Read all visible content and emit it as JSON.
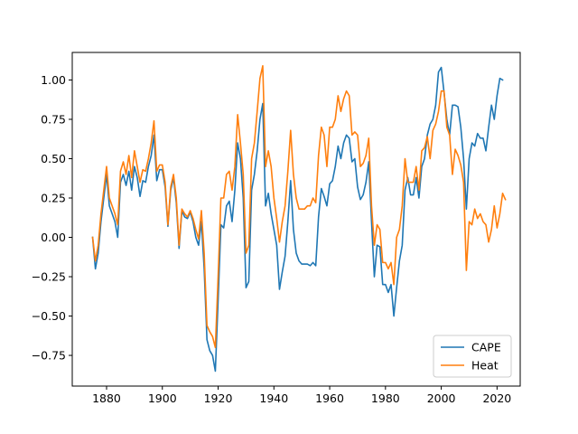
{
  "chart_data": {
    "type": "line",
    "title": "",
    "xlabel": "",
    "ylabel": "",
    "xlim": [
      1867.7,
      2028.3
    ],
    "ylim": [
      -0.945,
      1.175
    ],
    "xticks": [
      1880,
      1900,
      1920,
      1940,
      1960,
      1980,
      2000,
      2020
    ],
    "yticks": [
      -0.75,
      -0.5,
      -0.25,
      0.0,
      0.25,
      0.5,
      0.75,
      1.0
    ],
    "ytick_labels": [
      "−0.75",
      "−0.50",
      "−0.25",
      "0.00",
      "0.25",
      "0.50",
      "0.75",
      "1.00"
    ],
    "grid": false,
    "legend_position": "lower-right",
    "series": [
      {
        "name": "CAPE",
        "color": "#1f77b4",
        "points": [
          [
            1875,
            0.0
          ],
          [
            1876,
            -0.2
          ],
          [
            1877,
            -0.1
          ],
          [
            1878,
            0.1
          ],
          [
            1879,
            0.25
          ],
          [
            1880,
            0.4
          ],
          [
            1881,
            0.2
          ],
          [
            1882,
            0.15
          ],
          [
            1883,
            0.1
          ],
          [
            1884,
            0.0
          ],
          [
            1885,
            0.35
          ],
          [
            1886,
            0.4
          ],
          [
            1887,
            0.33
          ],
          [
            1888,
            0.42
          ],
          [
            1889,
            0.3
          ],
          [
            1890,
            0.45
          ],
          [
            1891,
            0.38
          ],
          [
            1892,
            0.26
          ],
          [
            1893,
            0.36
          ],
          [
            1894,
            0.35
          ],
          [
            1895,
            0.45
          ],
          [
            1896,
            0.52
          ],
          [
            1897,
            0.65
          ],
          [
            1898,
            0.36
          ],
          [
            1899,
            0.43
          ],
          [
            1900,
            0.43
          ],
          [
            1901,
            0.32
          ],
          [
            1902,
            0.07
          ],
          [
            1903,
            0.3
          ],
          [
            1904,
            0.38
          ],
          [
            1905,
            0.22
          ],
          [
            1906,
            -0.07
          ],
          [
            1907,
            0.17
          ],
          [
            1908,
            0.13
          ],
          [
            1909,
            0.12
          ],
          [
            1910,
            0.16
          ],
          [
            1911,
            0.1
          ],
          [
            1912,
            0.0
          ],
          [
            1913,
            -0.05
          ],
          [
            1914,
            0.1
          ],
          [
            1915,
            -0.2
          ],
          [
            1916,
            -0.65
          ],
          [
            1917,
            -0.72
          ],
          [
            1918,
            -0.75
          ],
          [
            1919,
            -0.85
          ],
          [
            1920,
            -0.4
          ],
          [
            1921,
            0.08
          ],
          [
            1922,
            0.06
          ],
          [
            1923,
            0.2
          ],
          [
            1924,
            0.23
          ],
          [
            1925,
            0.1
          ],
          [
            1926,
            0.3
          ],
          [
            1927,
            0.6
          ],
          [
            1928,
            0.5
          ],
          [
            1929,
            0.25
          ],
          [
            1930,
            -0.32
          ],
          [
            1931,
            -0.28
          ],
          [
            1932,
            0.3
          ],
          [
            1933,
            0.4
          ],
          [
            1934,
            0.55
          ],
          [
            1935,
            0.75
          ],
          [
            1936,
            0.85
          ],
          [
            1937,
            0.2
          ],
          [
            1938,
            0.28
          ],
          [
            1939,
            0.15
          ],
          [
            1940,
            0.05
          ],
          [
            1941,
            -0.05
          ],
          [
            1942,
            -0.33
          ],
          [
            1943,
            -0.22
          ],
          [
            1944,
            -0.12
          ],
          [
            1945,
            0.1
          ],
          [
            1946,
            0.36
          ],
          [
            1947,
            0.05
          ],
          [
            1948,
            -0.1
          ],
          [
            1949,
            -0.15
          ],
          [
            1950,
            -0.17
          ],
          [
            1951,
            -0.17
          ],
          [
            1952,
            -0.17
          ],
          [
            1953,
            -0.18
          ],
          [
            1954,
            -0.16
          ],
          [
            1955,
            -0.18
          ],
          [
            1956,
            0.13
          ],
          [
            1957,
            0.31
          ],
          [
            1958,
            0.26
          ],
          [
            1959,
            0.2
          ],
          [
            1960,
            0.34
          ],
          [
            1961,
            0.36
          ],
          [
            1962,
            0.45
          ],
          [
            1963,
            0.58
          ],
          [
            1964,
            0.5
          ],
          [
            1965,
            0.6
          ],
          [
            1966,
            0.65
          ],
          [
            1967,
            0.63
          ],
          [
            1968,
            0.48
          ],
          [
            1969,
            0.5
          ],
          [
            1970,
            0.32
          ],
          [
            1971,
            0.24
          ],
          [
            1972,
            0.27
          ],
          [
            1973,
            0.35
          ],
          [
            1974,
            0.48
          ],
          [
            1975,
            0.1
          ],
          [
            1976,
            -0.25
          ],
          [
            1977,
            -0.05
          ],
          [
            1978,
            -0.06
          ],
          [
            1979,
            -0.3
          ],
          [
            1980,
            -0.3
          ],
          [
            1981,
            -0.35
          ],
          [
            1982,
            -0.3
          ],
          [
            1983,
            -0.5
          ],
          [
            1984,
            -0.32
          ],
          [
            1985,
            -0.15
          ],
          [
            1986,
            -0.05
          ],
          [
            1987,
            0.3
          ],
          [
            1988,
            0.38
          ],
          [
            1989,
            0.27
          ],
          [
            1990,
            0.27
          ],
          [
            1991,
            0.38
          ],
          [
            1992,
            0.25
          ],
          [
            1993,
            0.45
          ],
          [
            1994,
            0.5
          ],
          [
            1995,
            0.65
          ],
          [
            1996,
            0.72
          ],
          [
            1997,
            0.75
          ],
          [
            1998,
            0.84
          ],
          [
            1999,
            1.05
          ],
          [
            2000,
            1.08
          ],
          [
            2001,
            0.92
          ],
          [
            2002,
            0.75
          ],
          [
            2003,
            0.65
          ],
          [
            2004,
            0.84
          ],
          [
            2005,
            0.84
          ],
          [
            2006,
            0.83
          ],
          [
            2007,
            0.7
          ],
          [
            2008,
            0.5
          ],
          [
            2009,
            0.18
          ],
          [
            2010,
            0.5
          ],
          [
            2011,
            0.6
          ],
          [
            2012,
            0.58
          ],
          [
            2013,
            0.66
          ],
          [
            2014,
            0.63
          ],
          [
            2015,
            0.63
          ],
          [
            2016,
            0.55
          ],
          [
            2017,
            0.7
          ],
          [
            2018,
            0.84
          ],
          [
            2019,
            0.75
          ],
          [
            2020,
            0.9
          ],
          [
            2021,
            1.01
          ],
          [
            2022,
            1.0
          ]
        ]
      },
      {
        "name": "Heat",
        "color": "#ff7f0e",
        "points": [
          [
            1875,
            0.0
          ],
          [
            1876,
            -0.15
          ],
          [
            1877,
            -0.05
          ],
          [
            1878,
            0.15
          ],
          [
            1879,
            0.3
          ],
          [
            1880,
            0.45
          ],
          [
            1881,
            0.25
          ],
          [
            1882,
            0.2
          ],
          [
            1883,
            0.15
          ],
          [
            1884,
            0.08
          ],
          [
            1885,
            0.42
          ],
          [
            1886,
            0.48
          ],
          [
            1887,
            0.4
          ],
          [
            1888,
            0.52
          ],
          [
            1889,
            0.38
          ],
          [
            1890,
            0.55
          ],
          [
            1891,
            0.45
          ],
          [
            1892,
            0.35
          ],
          [
            1893,
            0.43
          ],
          [
            1894,
            0.42
          ],
          [
            1895,
            0.5
          ],
          [
            1896,
            0.6
          ],
          [
            1897,
            0.74
          ],
          [
            1898,
            0.42
          ],
          [
            1899,
            0.46
          ],
          [
            1900,
            0.46
          ],
          [
            1901,
            0.35
          ],
          [
            1902,
            0.08
          ],
          [
            1903,
            0.32
          ],
          [
            1904,
            0.4
          ],
          [
            1905,
            0.25
          ],
          [
            1906,
            -0.05
          ],
          [
            1907,
            0.18
          ],
          [
            1908,
            0.15
          ],
          [
            1909,
            0.13
          ],
          [
            1910,
            0.17
          ],
          [
            1911,
            0.12
          ],
          [
            1912,
            0.05
          ],
          [
            1913,
            -0.01
          ],
          [
            1914,
            0.17
          ],
          [
            1915,
            -0.1
          ],
          [
            1916,
            -0.56
          ],
          [
            1917,
            -0.6
          ],
          [
            1918,
            -0.63
          ],
          [
            1919,
            -0.7
          ],
          [
            1920,
            -0.25
          ],
          [
            1921,
            0.25
          ],
          [
            1922,
            0.25
          ],
          [
            1923,
            0.4
          ],
          [
            1924,
            0.42
          ],
          [
            1925,
            0.3
          ],
          [
            1926,
            0.45
          ],
          [
            1927,
            0.78
          ],
          [
            1928,
            0.6
          ],
          [
            1929,
            0.4
          ],
          [
            1930,
            -0.1
          ],
          [
            1931,
            -0.05
          ],
          [
            1932,
            0.5
          ],
          [
            1933,
            0.6
          ],
          [
            1934,
            0.8
          ],
          [
            1935,
            1.01
          ],
          [
            1936,
            1.09
          ],
          [
            1937,
            0.45
          ],
          [
            1938,
            0.55
          ],
          [
            1939,
            0.45
          ],
          [
            1940,
            0.25
          ],
          [
            1941,
            0.12
          ],
          [
            1942,
            -0.03
          ],
          [
            1943,
            0.1
          ],
          [
            1944,
            0.2
          ],
          [
            1945,
            0.42
          ],
          [
            1946,
            0.68
          ],
          [
            1947,
            0.4
          ],
          [
            1948,
            0.25
          ],
          [
            1949,
            0.18
          ],
          [
            1950,
            0.18
          ],
          [
            1951,
            0.18
          ],
          [
            1952,
            0.2
          ],
          [
            1953,
            0.2
          ],
          [
            1954,
            0.25
          ],
          [
            1955,
            0.22
          ],
          [
            1956,
            0.52
          ],
          [
            1957,
            0.7
          ],
          [
            1958,
            0.65
          ],
          [
            1959,
            0.45
          ],
          [
            1960,
            0.7
          ],
          [
            1961,
            0.7
          ],
          [
            1962,
            0.75
          ],
          [
            1963,
            0.9
          ],
          [
            1964,
            0.8
          ],
          [
            1965,
            0.88
          ],
          [
            1966,
            0.93
          ],
          [
            1967,
            0.9
          ],
          [
            1968,
            0.65
          ],
          [
            1969,
            0.67
          ],
          [
            1970,
            0.65
          ],
          [
            1971,
            0.45
          ],
          [
            1972,
            0.47
          ],
          [
            1973,
            0.52
          ],
          [
            1974,
            0.63
          ],
          [
            1975,
            0.2
          ],
          [
            1976,
            -0.05
          ],
          [
            1977,
            0.08
          ],
          [
            1978,
            0.05
          ],
          [
            1979,
            -0.16
          ],
          [
            1980,
            -0.16
          ],
          [
            1981,
            -0.2
          ],
          [
            1982,
            -0.16
          ],
          [
            1983,
            -0.3
          ],
          [
            1984,
            0.0
          ],
          [
            1985,
            0.05
          ],
          [
            1986,
            0.2
          ],
          [
            1987,
            0.5
          ],
          [
            1988,
            0.35
          ],
          [
            1989,
            0.35
          ],
          [
            1990,
            0.35
          ],
          [
            1991,
            0.45
          ],
          [
            1992,
            0.3
          ],
          [
            1993,
            0.55
          ],
          [
            1994,
            0.57
          ],
          [
            1995,
            0.64
          ],
          [
            1996,
            0.5
          ],
          [
            1997,
            0.68
          ],
          [
            1998,
            0.72
          ],
          [
            1999,
            0.8
          ],
          [
            2000,
            0.93
          ],
          [
            2001,
            0.93
          ],
          [
            2002,
            0.7
          ],
          [
            2003,
            0.65
          ],
          [
            2004,
            0.4
          ],
          [
            2005,
            0.56
          ],
          [
            2006,
            0.52
          ],
          [
            2007,
            0.46
          ],
          [
            2008,
            0.35
          ],
          [
            2009,
            -0.21
          ],
          [
            2010,
            0.1
          ],
          [
            2011,
            0.08
          ],
          [
            2012,
            0.18
          ],
          [
            2013,
            0.12
          ],
          [
            2014,
            0.15
          ],
          [
            2015,
            0.1
          ],
          [
            2016,
            0.08
          ],
          [
            2017,
            -0.03
          ],
          [
            2018,
            0.05
          ],
          [
            2019,
            0.2
          ],
          [
            2020,
            0.06
          ],
          [
            2021,
            0.15
          ],
          [
            2022,
            0.28
          ],
          [
            2023,
            0.24
          ]
        ]
      }
    ]
  }
}
